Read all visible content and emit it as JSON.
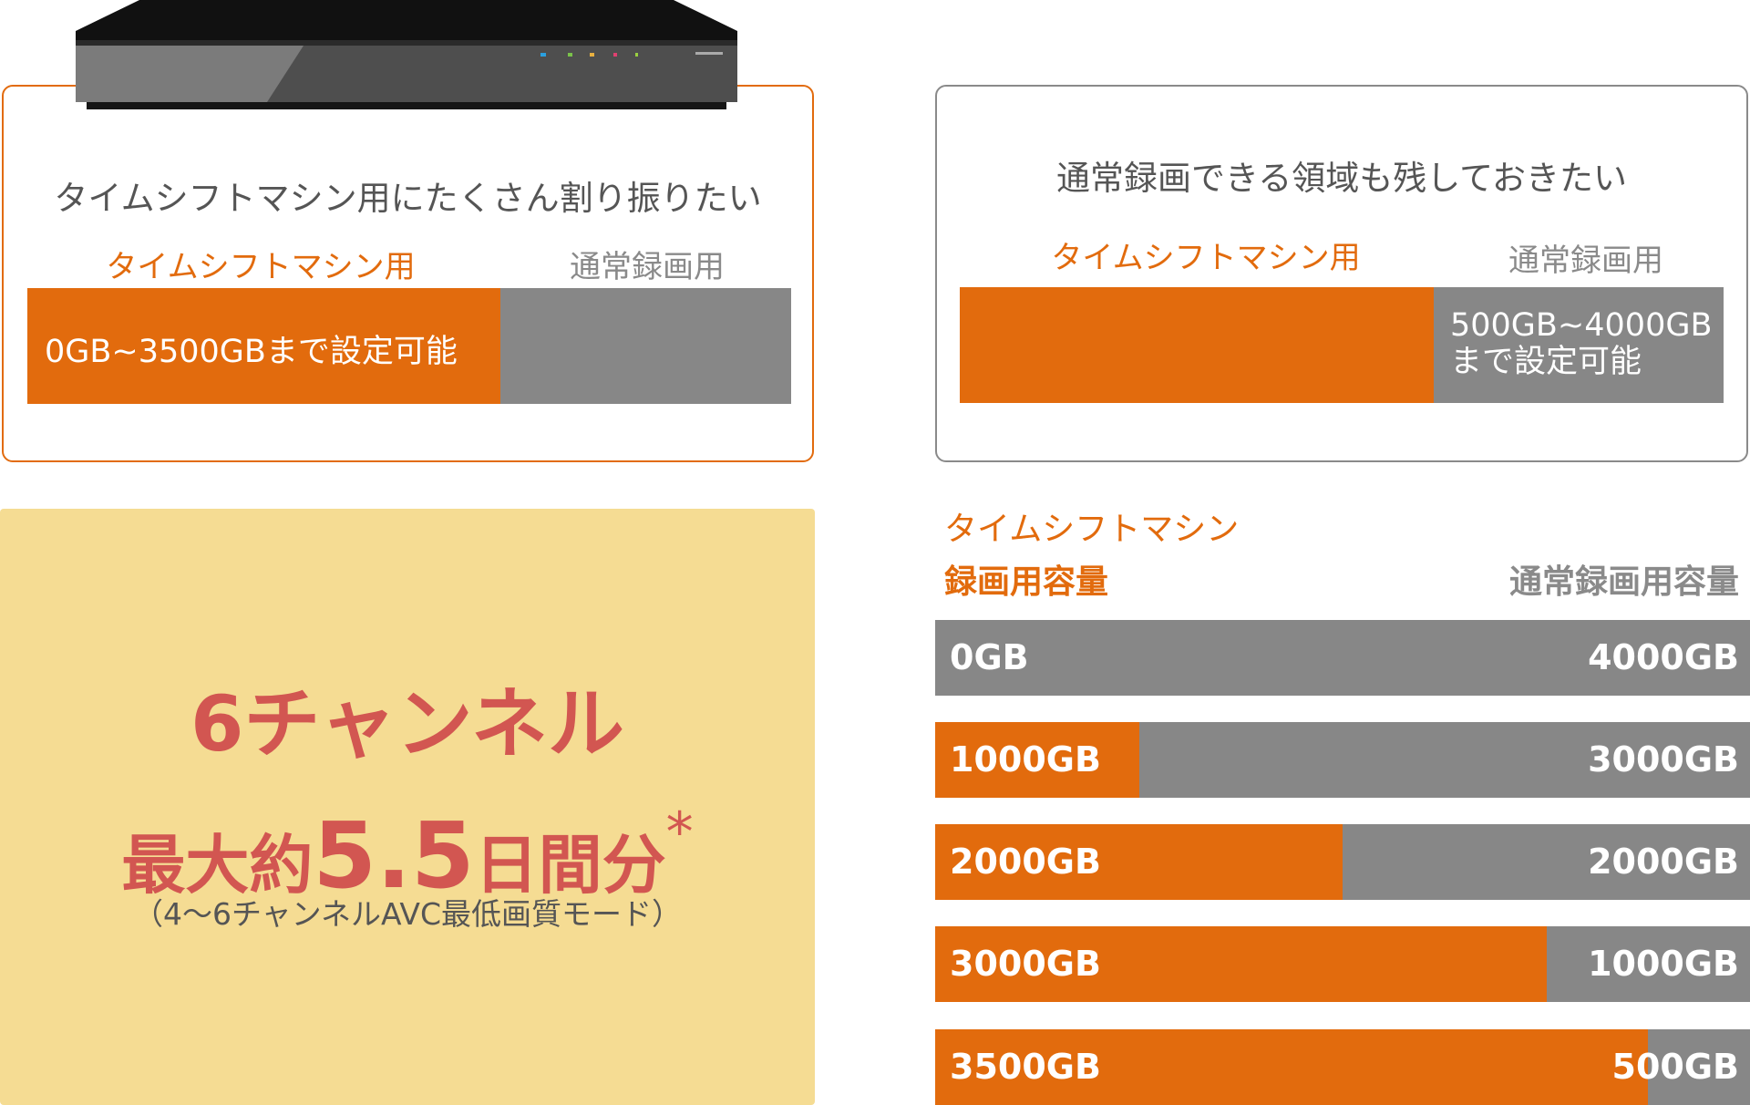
{
  "colors": {
    "timeshift": "#e26b0d",
    "normal": "#878787",
    "panel": "#f5dc93",
    "highlight": "#d25651"
  },
  "device": {
    "icon": "recorder-device-image"
  },
  "left_card": {
    "title": "タイムシフトマシン用にたくさん割り振りたい",
    "label_timeshift": "タイムシフトマシン用",
    "label_normal": "通常録画用",
    "bar_text": "0GB~3500GBまで設定可能",
    "timeshift_fraction": 0.62
  },
  "right_card": {
    "title": "通常録画できる領域も残しておきたい",
    "label_timeshift": "タイムシフトマシン用",
    "label_normal": "通常録画用",
    "bar_text_line1": "500GB~4000GB",
    "bar_text_line2": "まで設定可能",
    "timeshift_fraction": 0.62
  },
  "promo": {
    "line1": "6チャンネル",
    "line2_prefix": "最大約",
    "line2_number": "5.5",
    "line2_suffix": "日間分",
    "asterisk": "*",
    "note": "（4～6チャンネルAVC最低画質モード）"
  },
  "capacity_table": {
    "header_timeshift_line1": "タイムシフトマシン",
    "header_timeshift_line2": "録画用容量",
    "header_normal": "通常録画用容量",
    "total_gb": 4000,
    "rows": [
      {
        "timeshift": "0GB",
        "normal": "4000GB",
        "timeshift_gb": 0
      },
      {
        "timeshift": "1000GB",
        "normal": "3000GB",
        "timeshift_gb": 1000
      },
      {
        "timeshift": "2000GB",
        "normal": "2000GB",
        "timeshift_gb": 2000
      },
      {
        "timeshift": "3000GB",
        "normal": "1000GB",
        "timeshift_gb": 3000
      },
      {
        "timeshift": "3500GB",
        "normal": "500GB",
        "timeshift_gb": 3500
      }
    ]
  }
}
